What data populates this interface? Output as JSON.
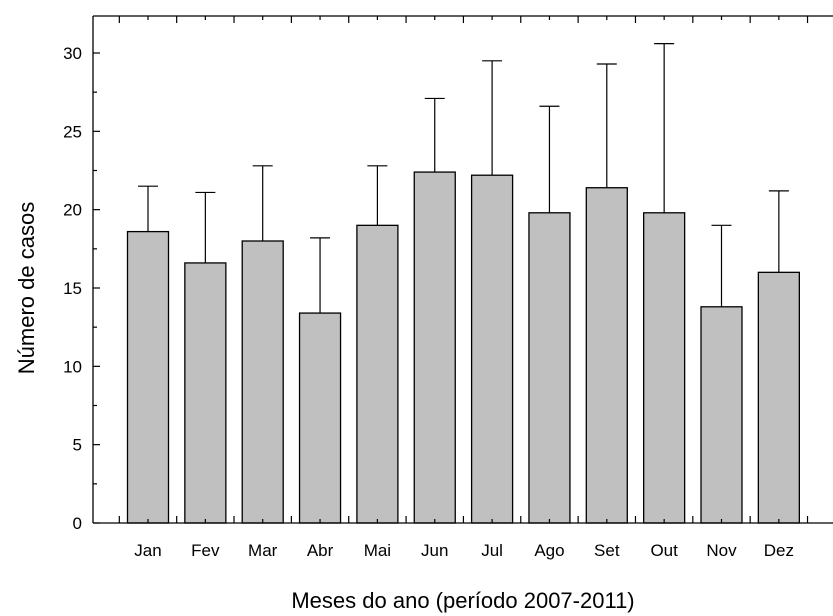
{
  "chart_data": {
    "type": "bar",
    "categories": [
      "Jan",
      "Fev",
      "Mar",
      "Abr",
      "Mai",
      "Jun",
      "Jul",
      "Ago",
      "Set",
      "Out",
      "Nov",
      "Dez"
    ],
    "values": [
      18.6,
      16.6,
      18.0,
      13.4,
      19.0,
      22.4,
      22.2,
      19.8,
      21.4,
      19.8,
      13.8,
      16.0
    ],
    "error_upper": [
      21.5,
      21.1,
      22.8,
      18.2,
      22.8,
      27.1,
      29.5,
      26.6,
      29.3,
      30.6,
      19.0,
      21.2
    ],
    "xlabel": "Meses do ano (período 2007-2011)",
    "ylabel": "Número de casos",
    "ylim": [
      0,
      32
    ],
    "yticks": [
      0,
      5,
      10,
      15,
      20,
      25,
      30
    ],
    "bar_color": "#c0c0c0",
    "edge_color": "#000000",
    "grid": false,
    "legend": "none"
  }
}
